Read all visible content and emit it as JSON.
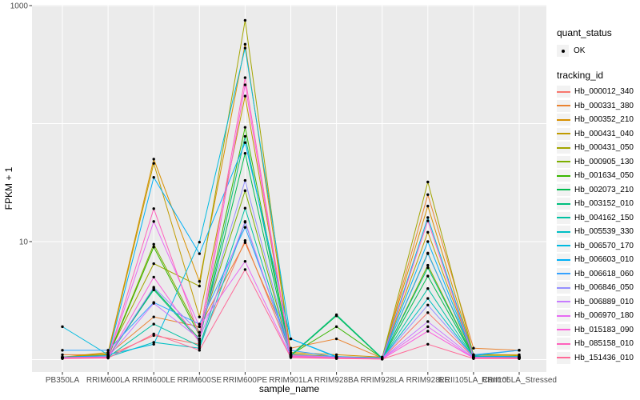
{
  "figure": {
    "background": "#FFFFFF",
    "panel_bg": "#EBEBEB",
    "grid_color": "#FFFFFF",
    "point_color": "#000000",
    "axis_text_color": "#4D4D4D",
    "title_text_color": "#000000",
    "legend_key_bg": "#F2F2F2"
  },
  "chart_data": {
    "type": "line",
    "title": "",
    "xlabel": "sample_name",
    "ylabel": "FPKM + 1",
    "y_scale": "log10",
    "ylim": [
      0.8,
      1030
    ],
    "grid": "major",
    "legend_position": "right",
    "y_ticks": [
      {
        "label": "1000",
        "value": 1000
      },
      {
        "label": "10",
        "value": 10
      }
    ],
    "y_gridlines": [
      1,
      10,
      100,
      1000
    ],
    "categories": [
      "PB350LA",
      "RRIM600LA",
      "RRIM600LE",
      "RRIM600SE",
      "RRIM600PE",
      "RRIM901LA",
      "RRIM928BA",
      "RRIM928LA",
      "RRIM928LE",
      "RRII105LA_Control",
      "RRII105LA_Stressed"
    ],
    "series": [
      {
        "name": "Hb_000012_340",
        "color": "#F8766D",
        "values": [
          1.05,
          1.08,
          1.6,
          1.35,
          10.2,
          1.1,
          1.05,
          1.02,
          2.5,
          1.05,
          1.05
        ]
      },
      {
        "name": "Hb_000331_380",
        "color": "#EA8331",
        "values": [
          1.1,
          1.1,
          2.3,
          1.9,
          9.8,
          1.25,
          1.5,
          1.03,
          25,
          1.25,
          1.2
        ]
      },
      {
        "name": "Hb_000352_210",
        "color": "#D89000",
        "values": [
          1.05,
          1.15,
          50,
          4.6,
          470,
          1.15,
          1.1,
          1.05,
          20,
          1.1,
          1.1
        ]
      },
      {
        "name": "Hb_000431_040",
        "color": "#C09B00",
        "values": [
          1.05,
          1.12,
          46,
          2.3,
          171,
          1.1,
          1.05,
          1.03,
          12,
          1.08,
          1.06
        ]
      },
      {
        "name": "Hb_000431_050",
        "color": "#A3A500",
        "values": [
          1.05,
          1.1,
          6.5,
          4.2,
          750,
          1.12,
          1.06,
          1.04,
          32,
          1.1,
          1.08
        ]
      },
      {
        "name": "Hb_000905_130",
        "color": "#7CAE00",
        "values": [
          1.03,
          1.06,
          9.5,
          1.7,
          27,
          1.08,
          1.04,
          1.02,
          6.3,
          1.05,
          1.04
        ]
      },
      {
        "name": "Hb_001634_050",
        "color": "#39B600",
        "values": [
          1.04,
          1.05,
          9.0,
          1.6,
          93,
          1.1,
          1.9,
          1.03,
          8.0,
          1.06,
          1.05
        ]
      },
      {
        "name": "Hb_002073_210",
        "color": "#00BB4E",
        "values": [
          1.03,
          1.05,
          4.0,
          1.5,
          56,
          1.08,
          2.35,
          1.02,
          5.1,
          1.05,
          1.04
        ]
      },
      {
        "name": "Hb_003152_010",
        "color": "#00BF7D",
        "values": [
          1.04,
          1.06,
          3.9,
          1.45,
          78,
          1.09,
          2.4,
          1.03,
          6.0,
          1.05,
          1.05
        ]
      },
      {
        "name": "Hb_004162_150",
        "color": "#00C1A3",
        "values": [
          1.03,
          1.05,
          2.0,
          1.3,
          19.2,
          1.07,
          1.04,
          1.02,
          4.0,
          1.04,
          1.03
        ]
      },
      {
        "name": "Hb_005539_330",
        "color": "#00BFC4",
        "values": [
          1.04,
          1.05,
          1.4,
          1.25,
          14.6,
          1.06,
          1.04,
          1.02,
          3.3,
          1.04,
          1.04
        ]
      },
      {
        "name": "Hb_006570_170",
        "color": "#00BAE0",
        "values": [
          1.9,
          1.1,
          1.35,
          9.9,
          437,
          1.5,
          1.05,
          1.04,
          16,
          1.08,
          1.2
        ]
      },
      {
        "name": "Hb_006603_010",
        "color": "#00B0F6",
        "values": [
          1.05,
          1.08,
          35,
          7.9,
          69,
          1.5,
          1.06,
          1.03,
          10,
          1.07,
          1.06
        ]
      },
      {
        "name": "Hb_006618_060",
        "color": "#35A2FF",
        "values": [
          1.2,
          1.2,
          3.05,
          2.0,
          13.2,
          1.2,
          1.05,
          1.03,
          7.9,
          1.1,
          1.2
        ]
      },
      {
        "name": "Hb_006846_050",
        "color": "#9590FF",
        "values": [
          1.04,
          1.06,
          4.1,
          1.7,
          33,
          1.1,
          1.05,
          1.02,
          2.9,
          1.05,
          1.04
        ]
      },
      {
        "name": "Hb_006889_010",
        "color": "#C77CFF",
        "values": [
          1.03,
          1.05,
          3.0,
          1.5,
          14.8,
          1.08,
          1.04,
          1.02,
          2.1,
          1.04,
          1.03
        ]
      },
      {
        "name": "Hb_006970_180",
        "color": "#E76BF3",
        "values": [
          1.03,
          1.04,
          14.8,
          1.9,
          6.8,
          1.06,
          1.03,
          1.02,
          1.9,
          1.03,
          1.03
        ]
      },
      {
        "name": "Hb_015183_090",
        "color": "#FA62DB",
        "values": [
          1.03,
          1.04,
          5.0,
          1.4,
          213,
          1.05,
          1.03,
          1.01,
          1.74,
          1.03,
          1.02
        ]
      },
      {
        "name": "Hb_085158_010",
        "color": "#FF62BC",
        "values": [
          1.04,
          1.05,
          19,
          1.6,
          245,
          1.07,
          1.04,
          1.02,
          15,
          1.04,
          1.04
        ]
      },
      {
        "name": "Hb_151436_010",
        "color": "#FF6A98",
        "values": [
          1.02,
          1.03,
          1.65,
          1.2,
          5.8,
          1.04,
          1.02,
          1.01,
          1.35,
          1.02,
          1.02
        ]
      }
    ],
    "legend": {
      "quant_status_title": "quant_status",
      "quant_status_items": [
        {
          "label": "OK"
        }
      ],
      "tracking_title": "tracking_id"
    }
  }
}
